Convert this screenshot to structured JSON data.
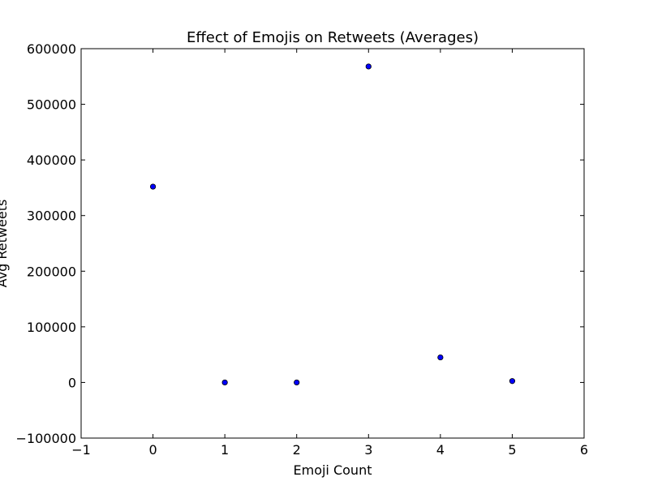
{
  "chart_data": {
    "type": "scatter",
    "title": "Effect of Emojis on Retweets (Averages)",
    "xlabel": "Emoji Count",
    "ylabel": "Avg Retweets",
    "xlim": [
      -1,
      6
    ],
    "ylim": [
      -100000,
      600000
    ],
    "x_ticks": [
      -1,
      0,
      1,
      2,
      3,
      4,
      5,
      6
    ],
    "y_ticks": [
      -100000,
      0,
      100000,
      200000,
      300000,
      400000,
      500000,
      600000
    ],
    "x_tick_labels": [
      "−1",
      "0",
      "1",
      "2",
      "3",
      "4",
      "5",
      "6"
    ],
    "y_tick_labels": [
      "−100000",
      "0",
      "100000",
      "200000",
      "300000",
      "400000",
      "500000",
      "600000"
    ],
    "grid": false,
    "marker_color": "#0000ff",
    "marker_edge_color": "#000000",
    "points": [
      {
        "x": 0,
        "y": 352000
      },
      {
        "x": 1,
        "y": 0
      },
      {
        "x": 2,
        "y": 0
      },
      {
        "x": 3,
        "y": 568000
      },
      {
        "x": 4,
        "y": 45000
      },
      {
        "x": 5,
        "y": 2500
      }
    ]
  }
}
